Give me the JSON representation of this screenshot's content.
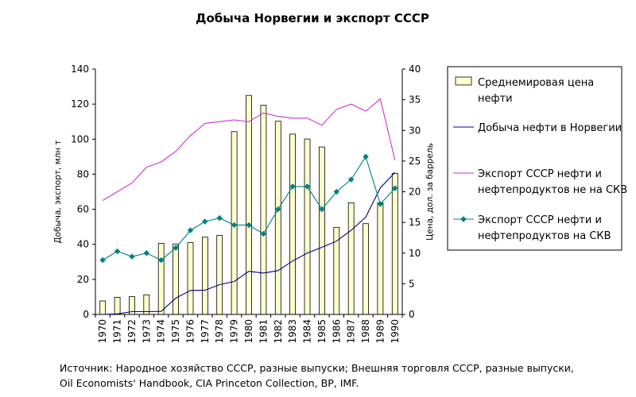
{
  "chart_data": {
    "type": "bar+line",
    "title": "Добыча Норвегии и экспорт СССР",
    "categories": [
      "1970",
      "1971",
      "1972",
      "1973",
      "1974",
      "1975",
      "1976",
      "1977",
      "1978",
      "1979",
      "1980",
      "1981",
      "1982",
      "1983",
      "1984",
      "1985",
      "1986",
      "1987",
      "1988",
      "1989",
      "1990"
    ],
    "ylabel_left": "Добыча, экспорт, млн т",
    "ylabel_right": "Цена, дол. за баррель",
    "ylim_left": [
      0,
      140
    ],
    "ylim_right": [
      0,
      40
    ],
    "yticks_left": [
      "0",
      "20",
      "40",
      "60",
      "80",
      "100",
      "120",
      "140"
    ],
    "yticks_right": [
      "0",
      "5",
      "10",
      "15",
      "20",
      "25",
      "30",
      "35",
      "40"
    ],
    "grid": false,
    "legend_position": "right",
    "series": [
      {
        "name": "Среднемировая цена нефти",
        "name_lines": [
          "Среднемировая цена",
          "нефти"
        ],
        "kind": "bar",
        "axis": "right",
        "color": "#ffffcc",
        "values": [
          2.2,
          2.8,
          2.9,
          3.2,
          11.6,
          11.5,
          11.7,
          12.6,
          12.9,
          29.8,
          35.7,
          34.1,
          31.5,
          29.4,
          28.6,
          27.3,
          14.2,
          18.2,
          14.8,
          18.2,
          23.0
        ]
      },
      {
        "name": "Добыча нефти в Норвегии",
        "name_lines": [
          "Добыча нефти в Норвегии"
        ],
        "kind": "line",
        "axis": "left",
        "color": "#000080",
        "values": [
          0,
          0.3,
          1.6,
          1.6,
          1.7,
          9.3,
          13.7,
          13.8,
          17.0,
          18.8,
          24.6,
          23.6,
          25.0,
          30.5,
          35.0,
          38.3,
          41.8,
          48.0,
          55.5,
          72.2,
          81.0
        ]
      },
      {
        "name": "Экспорт СССР нефти и нефтепродуктов не на СКВ",
        "name_lines": [
          "Экспорт СССР нефти и",
          "нефтепродуктов не на СКВ"
        ],
        "kind": "line",
        "axis": "left",
        "color": "#cc33cc",
        "values": [
          65,
          70,
          75,
          84,
          87,
          93,
          102,
          109,
          110,
          111,
          110,
          115,
          113,
          112,
          112,
          108,
          117,
          120,
          116,
          123,
          88
        ]
      },
      {
        "name": "Экспорт СССР нефти и нефтепродуктов на СКВ",
        "name_lines": [
          "Экспорт СССР нефти и",
          "нефтепродуктов на СКВ"
        ],
        "kind": "line-markers",
        "axis": "left",
        "color": "#008080",
        "values": [
          31,
          36,
          33,
          35,
          31,
          38,
          48,
          53,
          55,
          51,
          51,
          46,
          60,
          73,
          73,
          60,
          70,
          77,
          90,
          63,
          72
        ]
      }
    ]
  },
  "source": {
    "line1": "Источник: Народное хозяйство СССР, разные выпуски; Внешняя торговля СССР, разные выпуски,",
    "line2": "Oil Economists' Handbook, CIA Princeton Collection, BP, IMF."
  }
}
